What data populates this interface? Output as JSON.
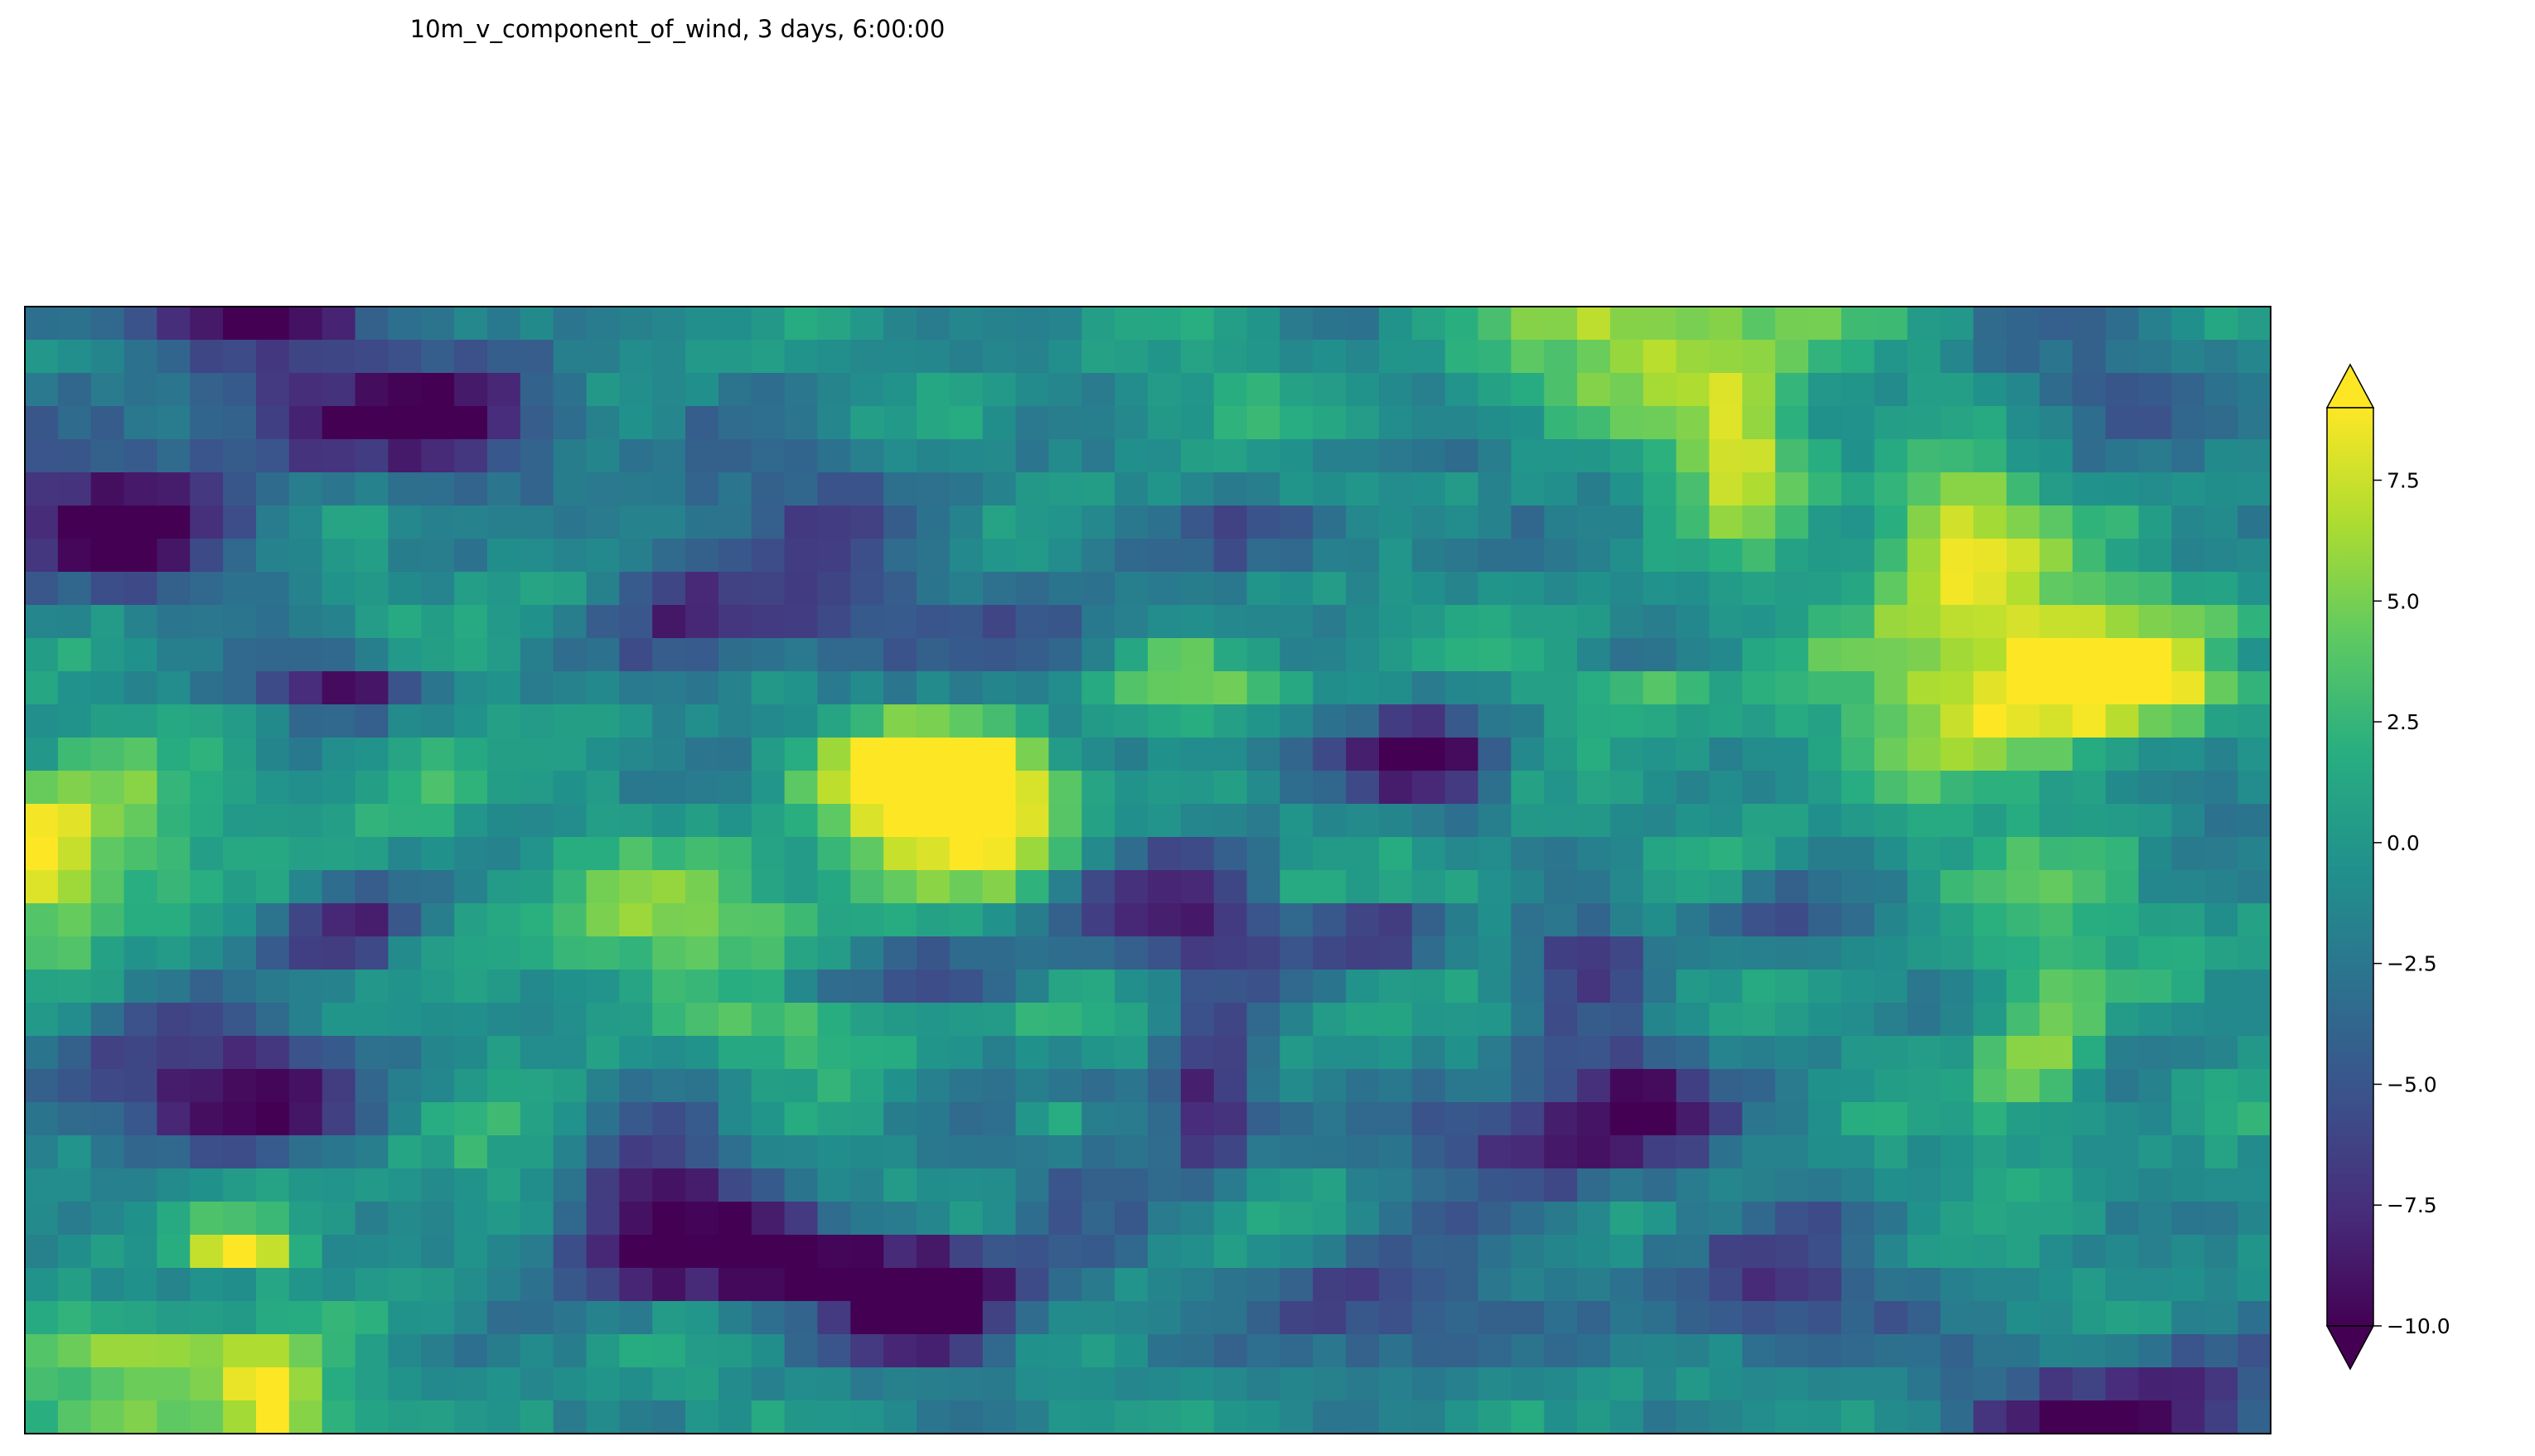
{
  "chart_data": {
    "type": "heatmap",
    "title": "10m_v_component_of_wind, 3 days, 6:00:00",
    "xlabel": "",
    "ylabel": "",
    "x_ticks": [],
    "y_ticks": [],
    "colormap": "viridis",
    "colorbar": {
      "vmin": -10.0,
      "vmax": 9.0,
      "extend": "both",
      "ticks": [
        -10.0,
        -7.5,
        -5.0,
        -2.5,
        0.0,
        2.5,
        5.0,
        7.5
      ],
      "tick_labels": [
        "−10.0",
        "−7.5",
        "−5.0",
        "−2.5",
        "0.0",
        "2.5",
        "5.0",
        "7.5"
      ],
      "position": "right"
    },
    "grid": false,
    "colors": {
      "viridis_low": "#440154",
      "viridis_mid": "#21918c",
      "viridis_high": "#fde725"
    }
  }
}
